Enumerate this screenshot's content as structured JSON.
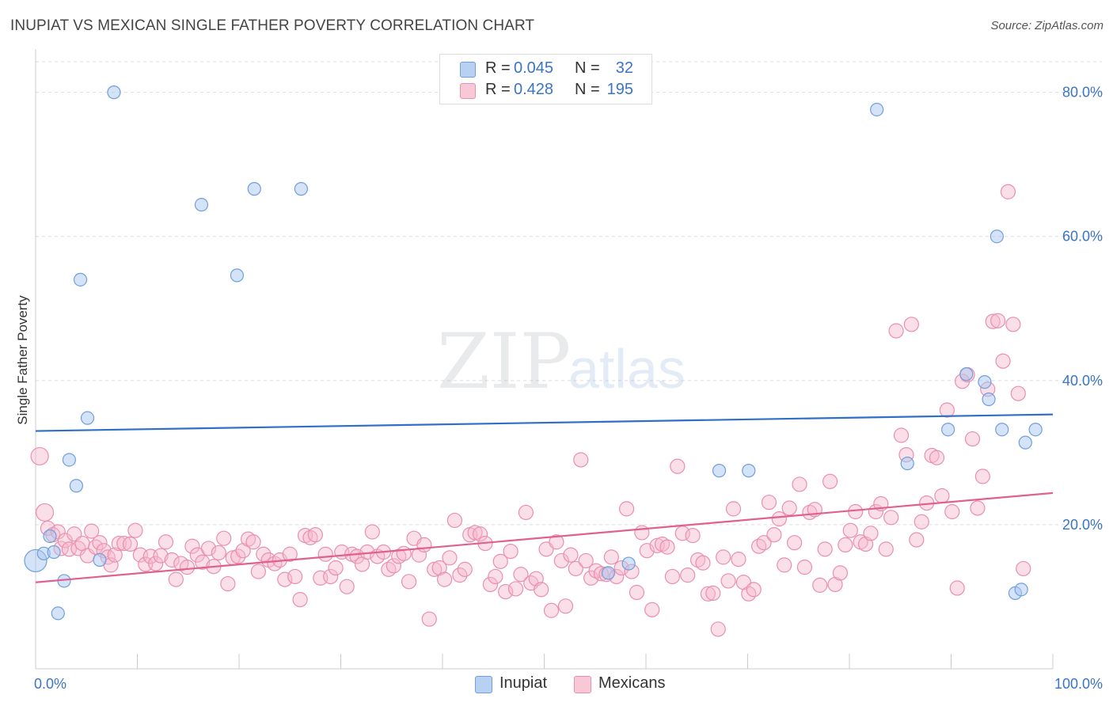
{
  "header": {
    "title": "INUPIAT VS MEXICAN SINGLE FATHER POVERTY CORRELATION CHART",
    "source": "Source: ZipAtlas.com"
  },
  "watermark": {
    "zip": "ZIP",
    "atlas": "atlas"
  },
  "legend": {
    "rows": [
      {
        "r_label": "R =",
        "r_value": "0.045",
        "n_label": "N =",
        "n_value": "32"
      },
      {
        "r_label": "R =",
        "r_value": "0.428",
        "n_label": "N =",
        "n_value": "195"
      }
    ]
  },
  "bottom_legend": {
    "inupiat": "Inupiat",
    "mexicans": "Mexicans"
  },
  "colors": {
    "inupiat_fill": "#a9c7ef",
    "inupiat_stroke": "#6f9fdc",
    "inupiat_line": "#2f6fc6",
    "mexicans_fill": "#f6b9cd",
    "mexicans_stroke": "#e98fae",
    "mexicans_line": "#e0608f",
    "tick_text": "#3a74c4"
  },
  "chart_data": {
    "type": "scatter",
    "title": "INUPIAT VS MEXICAN SINGLE FATHER POVERTY CORRELATION CHART",
    "xlabel": "",
    "ylabel": "Single Father Poverty",
    "xlim": [
      0,
      100
    ],
    "ylim": [
      0,
      86
    ],
    "x_tick_labels": [
      "0.0%",
      "100.0%"
    ],
    "y_ticks": [
      20,
      40,
      60,
      80
    ],
    "y_tick_labels": [
      "20.0%",
      "40.0%",
      "60.0%",
      "80.0%"
    ],
    "grid": "horizontal dashed",
    "legend_position": "top-center",
    "series": [
      {
        "name": "Inupiat",
        "r": 0.045,
        "n": 32,
        "trend": [
          [
            0,
            33.0
          ],
          [
            100,
            35.3
          ]
        ],
        "points": [
          [
            0,
            15.0,
            14
          ],
          [
            0.8,
            16.0,
            8
          ],
          [
            1.4,
            18.4,
            8
          ],
          [
            1.8,
            16.2,
            8
          ],
          [
            2.2,
            7.7,
            8
          ],
          [
            2.8,
            12.2,
            8
          ],
          [
            3.3,
            29.0,
            8
          ],
          [
            4.0,
            25.4,
            8
          ],
          [
            4.4,
            54.0,
            8
          ],
          [
            5.1,
            34.8,
            8
          ],
          [
            6.3,
            15.1,
            8
          ],
          [
            7.7,
            80.0,
            8
          ],
          [
            16.3,
            64.4,
            8
          ],
          [
            19.8,
            54.6,
            8
          ],
          [
            21.5,
            66.6,
            8
          ],
          [
            26.1,
            66.6,
            8
          ],
          [
            56.3,
            13.3,
            8
          ],
          [
            58.3,
            14.6,
            8
          ],
          [
            67.2,
            27.5,
            8
          ],
          [
            70.1,
            27.5,
            8
          ],
          [
            82.7,
            77.6,
            8
          ],
          [
            85.7,
            28.5,
            8
          ],
          [
            89.7,
            33.2,
            8
          ],
          [
            91.5,
            40.9,
            8
          ],
          [
            93.3,
            39.8,
            8
          ],
          [
            93.7,
            37.4,
            8
          ],
          [
            94.5,
            60.0,
            8
          ],
          [
            95.0,
            33.2,
            8
          ],
          [
            96.3,
            10.5,
            8
          ],
          [
            96.9,
            11.0,
            8
          ],
          [
            97.3,
            31.4,
            8
          ],
          [
            98.3,
            33.2,
            8
          ]
        ]
      },
      {
        "name": "Mexicans",
        "r": 0.428,
        "n": 195,
        "trend": [
          [
            0,
            12.0
          ],
          [
            100,
            24.4
          ]
        ],
        "points": [
          [
            0.4,
            29.5,
            11
          ],
          [
            0.9,
            21.7,
            11
          ],
          [
            1.2,
            19.5,
            9
          ],
          [
            1.7,
            18.6,
            9
          ],
          [
            2.2,
            19.0,
            9
          ],
          [
            2.5,
            16.7,
            9
          ],
          [
            2.9,
            17.8,
            9
          ],
          [
            3.3,
            16.6,
            9
          ],
          [
            3.8,
            18.7,
            9
          ],
          [
            4.2,
            16.7,
            9
          ],
          [
            4.6,
            17.4,
            9
          ],
          [
            5.1,
            15.7,
            9
          ],
          [
            5.5,
            19.1,
            9
          ],
          [
            5.9,
            16.9,
            9
          ],
          [
            6.3,
            17.5,
            9
          ],
          [
            6.7,
            16.4,
            9
          ],
          [
            7.1,
            15.5,
            9
          ],
          [
            7.4,
            14.4,
            9
          ],
          [
            7.8,
            15.8,
            9
          ],
          [
            8.2,
            17.4,
            9
          ],
          [
            8.7,
            17.4,
            9
          ],
          [
            9.3,
            17.3,
            9
          ],
          [
            9.8,
            19.2,
            9
          ],
          [
            10.3,
            15.8,
            9
          ],
          [
            10.8,
            14.5,
            9
          ],
          [
            11.3,
            15.6,
            9
          ],
          [
            11.8,
            14.6,
            9
          ],
          [
            12.3,
            15.7,
            9
          ],
          [
            12.8,
            17.6,
            9
          ],
          [
            13.4,
            15.1,
            9
          ],
          [
            13.8,
            12.4,
            9
          ],
          [
            14.3,
            14.6,
            9
          ],
          [
            14.9,
            14.1,
            9
          ],
          [
            15.4,
            17.0,
            9
          ],
          [
            15.9,
            15.8,
            9
          ],
          [
            16.4,
            14.8,
            9
          ],
          [
            17.0,
            16.7,
            9
          ],
          [
            17.5,
            14.2,
            9
          ],
          [
            18.0,
            16.1,
            9
          ],
          [
            18.5,
            18.1,
            9
          ],
          [
            18.9,
            11.8,
            9
          ],
          [
            19.4,
            15.4,
            9
          ],
          [
            19.9,
            15.6,
            9
          ],
          [
            20.4,
            16.4,
            9
          ],
          [
            20.9,
            18.0,
            9
          ],
          [
            21.4,
            17.6,
            9
          ],
          [
            21.9,
            13.5,
            9
          ],
          [
            22.4,
            15.9,
            9
          ],
          [
            22.9,
            15.1,
            9
          ],
          [
            23.5,
            14.6,
            9
          ],
          [
            24.0,
            15.1,
            9
          ],
          [
            24.5,
            12.4,
            9
          ],
          [
            25.0,
            15.9,
            9
          ],
          [
            25.5,
            12.8,
            9
          ],
          [
            26.0,
            9.6,
            9
          ],
          [
            26.5,
            18.5,
            9
          ],
          [
            27.0,
            18.2,
            9
          ],
          [
            27.5,
            18.6,
            9
          ],
          [
            28.0,
            12.6,
            9
          ],
          [
            28.5,
            15.9,
            9
          ],
          [
            29.0,
            12.8,
            9
          ],
          [
            29.5,
            14.0,
            9
          ],
          [
            30.1,
            16.2,
            9
          ],
          [
            30.6,
            11.4,
            9
          ],
          [
            31.1,
            15.9,
            9
          ],
          [
            31.6,
            15.6,
            9
          ],
          [
            32.1,
            14.5,
            9
          ],
          [
            32.6,
            16.2,
            9
          ],
          [
            33.1,
            19.0,
            9
          ],
          [
            33.6,
            15.6,
            9
          ],
          [
            34.2,
            16.2,
            9
          ],
          [
            34.7,
            13.8,
            9
          ],
          [
            35.2,
            14.3,
            9
          ],
          [
            35.7,
            15.6,
            9
          ],
          [
            36.2,
            16.0,
            9
          ],
          [
            36.7,
            12.1,
            9
          ],
          [
            37.2,
            18.1,
            9
          ],
          [
            37.7,
            15.8,
            9
          ],
          [
            38.2,
            17.2,
            9
          ],
          [
            38.7,
            6.9,
            9
          ],
          [
            39.2,
            13.8,
            9
          ],
          [
            39.7,
            14.0,
            9
          ],
          [
            40.2,
            12.4,
            9
          ],
          [
            40.7,
            15.4,
            9
          ],
          [
            41.2,
            20.6,
            9
          ],
          [
            41.7,
            13.0,
            9
          ],
          [
            42.2,
            13.8,
            9
          ],
          [
            42.7,
            18.6,
            9
          ],
          [
            43.2,
            18.9,
            9
          ],
          [
            43.7,
            18.7,
            9
          ],
          [
            44.2,
            17.4,
            9
          ],
          [
            44.7,
            11.7,
            9
          ],
          [
            45.2,
            12.8,
            9
          ],
          [
            45.7,
            14.9,
            9
          ],
          [
            46.2,
            10.7,
            9
          ],
          [
            46.7,
            16.3,
            9
          ],
          [
            47.2,
            11.1,
            9
          ],
          [
            47.7,
            13.1,
            9
          ],
          [
            48.2,
            21.7,
            9
          ],
          [
            48.7,
            11.9,
            9
          ],
          [
            49.2,
            12.5,
            9
          ],
          [
            49.7,
            11.0,
            9
          ],
          [
            50.2,
            16.6,
            9
          ],
          [
            50.7,
            8.1,
            9
          ],
          [
            51.2,
            17.6,
            9
          ],
          [
            51.7,
            15.0,
            9
          ],
          [
            52.1,
            8.7,
            9
          ],
          [
            52.6,
            15.8,
            9
          ],
          [
            53.1,
            13.9,
            9
          ],
          [
            53.6,
            29.0,
            9
          ],
          [
            54.1,
            15.0,
            9
          ],
          [
            54.6,
            12.6,
            9
          ],
          [
            55.1,
            13.6,
            9
          ],
          [
            55.6,
            13.2,
            9
          ],
          [
            56.1,
            13.1,
            9
          ],
          [
            56.6,
            15.5,
            9
          ],
          [
            57.1,
            12.8,
            9
          ],
          [
            57.6,
            14.0,
            9
          ],
          [
            58.1,
            22.2,
            9
          ],
          [
            58.6,
            13.5,
            9
          ],
          [
            59.1,
            10.6,
            9
          ],
          [
            59.6,
            18.9,
            9
          ],
          [
            60.1,
            16.4,
            9
          ],
          [
            60.6,
            8.2,
            9
          ],
          [
            61.1,
            17.1,
            9
          ],
          [
            61.6,
            17.3,
            9
          ],
          [
            62.1,
            16.9,
            9
          ],
          [
            62.6,
            12.8,
            9
          ],
          [
            63.1,
            28.1,
            9
          ],
          [
            63.6,
            18.8,
            9
          ],
          [
            64.1,
            13.0,
            9
          ],
          [
            64.6,
            18.5,
            9
          ],
          [
            65.1,
            15.1,
            9
          ],
          [
            65.6,
            14.7,
            9
          ],
          [
            66.1,
            10.4,
            9
          ],
          [
            66.6,
            10.5,
            9
          ],
          [
            67.1,
            5.5,
            9
          ],
          [
            67.6,
            15.5,
            9
          ],
          [
            68.1,
            12.2,
            9
          ],
          [
            68.6,
            22.2,
            9
          ],
          [
            69.1,
            15.2,
            9
          ],
          [
            69.6,
            12.0,
            9
          ],
          [
            70.1,
            10.4,
            9
          ],
          [
            70.6,
            11.0,
            9
          ],
          [
            71.1,
            17.0,
            9
          ],
          [
            71.6,
            17.5,
            9
          ],
          [
            72.1,
            23.1,
            9
          ],
          [
            72.6,
            18.6,
            9
          ],
          [
            73.1,
            20.8,
            9
          ],
          [
            73.6,
            14.4,
            9
          ],
          [
            74.1,
            22.3,
            9
          ],
          [
            74.6,
            17.5,
            9
          ],
          [
            75.1,
            25.6,
            9
          ],
          [
            75.6,
            14.1,
            9
          ],
          [
            76.1,
            21.7,
            9
          ],
          [
            76.6,
            22.1,
            9
          ],
          [
            77.1,
            11.6,
            9
          ],
          [
            77.6,
            16.6,
            9
          ],
          [
            78.1,
            26.0,
            9
          ],
          [
            78.6,
            11.7,
            9
          ],
          [
            79.1,
            13.3,
            9
          ],
          [
            79.6,
            17.2,
            9
          ],
          [
            80.1,
            19.2,
            9
          ],
          [
            80.6,
            21.8,
            9
          ],
          [
            81.1,
            17.6,
            9
          ],
          [
            81.6,
            17.3,
            9
          ],
          [
            82.1,
            18.8,
            9
          ],
          [
            82.6,
            21.8,
            9
          ],
          [
            83.1,
            22.9,
            9
          ],
          [
            83.6,
            16.6,
            9
          ],
          [
            84.1,
            21.0,
            9
          ],
          [
            84.6,
            46.9,
            9
          ],
          [
            85.1,
            32.4,
            9
          ],
          [
            85.6,
            29.7,
            9
          ],
          [
            86.1,
            47.8,
            9
          ],
          [
            86.6,
            17.9,
            9
          ],
          [
            87.1,
            20.4,
            9
          ],
          [
            87.6,
            23.0,
            9
          ],
          [
            88.1,
            29.6,
            9
          ],
          [
            88.6,
            29.3,
            9
          ],
          [
            89.1,
            24.0,
            9
          ],
          [
            89.6,
            35.9,
            9
          ],
          [
            90.1,
            21.8,
            9
          ],
          [
            90.6,
            11.2,
            9
          ],
          [
            91.1,
            39.9,
            9
          ],
          [
            91.6,
            40.8,
            9
          ],
          [
            92.1,
            31.9,
            9
          ],
          [
            92.6,
            22.3,
            9
          ],
          [
            93.1,
            26.7,
            9
          ],
          [
            93.6,
            38.8,
            9
          ],
          [
            94.1,
            48.2,
            9
          ],
          [
            94.6,
            48.3,
            9
          ],
          [
            95.1,
            42.7,
            9
          ],
          [
            95.6,
            66.2,
            9
          ],
          [
            96.1,
            47.8,
            9
          ],
          [
            96.6,
            38.2,
            9
          ],
          [
            97.1,
            13.9,
            9
          ]
        ]
      }
    ]
  }
}
